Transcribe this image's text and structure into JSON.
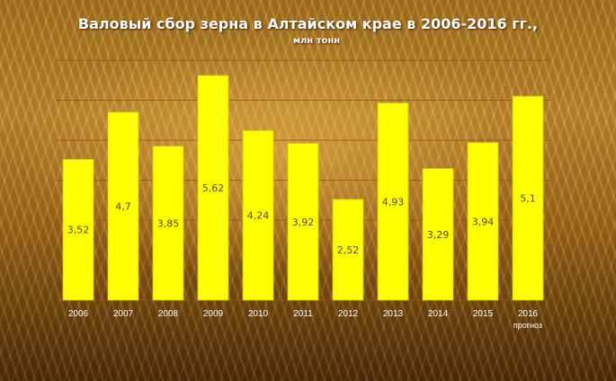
{
  "chart_data": {
    "type": "bar",
    "title": "Валовый сбор зерна в Алтайском крае в 2006-2016 гг.,",
    "subtitle": "млн тонн",
    "categories": [
      "2006",
      "2007",
      "2008",
      "2009",
      "2010",
      "2011",
      "2012",
      "2013",
      "2014",
      "2015",
      "2016"
    ],
    "category_notes": [
      "",
      "",
      "",
      "",
      "",
      "",
      "",
      "",
      "",
      "",
      "прогноз"
    ],
    "values": [
      3.52,
      4.7,
      3.85,
      5.62,
      4.24,
      3.92,
      2.52,
      4.93,
      3.29,
      3.94,
      5.1
    ],
    "value_labels": [
      "3,52",
      "4,7",
      "3,85",
      "5,62",
      "4,24",
      "3,92",
      "2,52",
      "4,93",
      "3,29",
      "3,94",
      "5,1"
    ],
    "ylim": [
      0,
      6
    ],
    "grid": true,
    "colors": {
      "bar": "#ffff00",
      "bar_edge": "#d8c800",
      "grid": "#a04a18",
      "text": "#ffffff"
    }
  }
}
